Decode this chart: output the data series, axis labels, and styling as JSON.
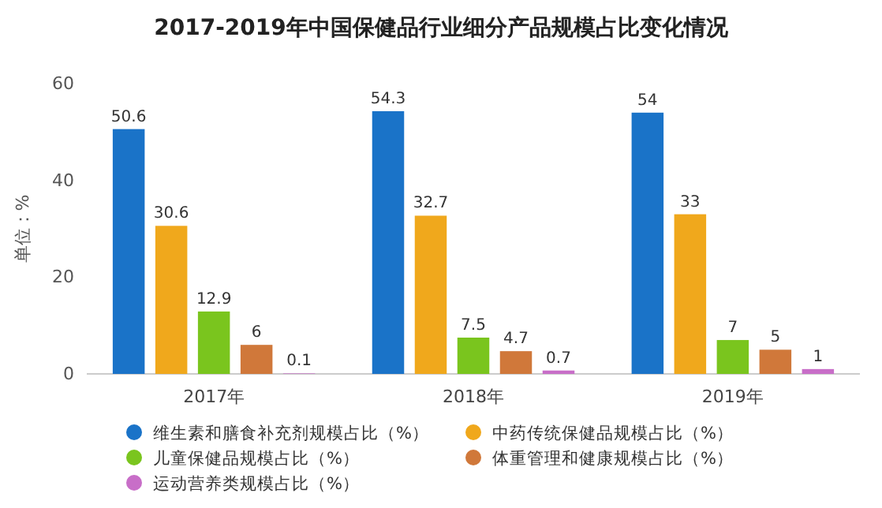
{
  "chart_data": {
    "type": "bar",
    "title": "2017-2019年中国保健品行业细分产品规模占比变化情况",
    "ylabel": "单位：%",
    "categories": [
      "2017年",
      "2018年",
      "2019年"
    ],
    "series": [
      {
        "name": "维生素和膳食补充剂规模占比（%）",
        "color": "#1a73c8",
        "values": [
          50.6,
          54.3,
          54
        ]
      },
      {
        "name": "中药传统保健品规模占比（%）",
        "color": "#f0a81c",
        "values": [
          30.6,
          32.7,
          33
        ]
      },
      {
        "name": "儿童保健品规模占比（%）",
        "color": "#7ac51e",
        "values": [
          12.9,
          7.5,
          7
        ]
      },
      {
        "name": "体重管理和健康规模占比（%）",
        "color": "#d0783a",
        "values": [
          6,
          4.7,
          5
        ]
      },
      {
        "name": "运动营养类规模占比（%）",
        "color": "#c86ec8",
        "values": [
          0.1,
          0.7,
          1
        ]
      }
    ],
    "ylim": [
      0,
      60
    ],
    "yticks": [
      0,
      20,
      40,
      60
    ],
    "grid": false,
    "data_labels": true,
    "legend": "bottom"
  }
}
